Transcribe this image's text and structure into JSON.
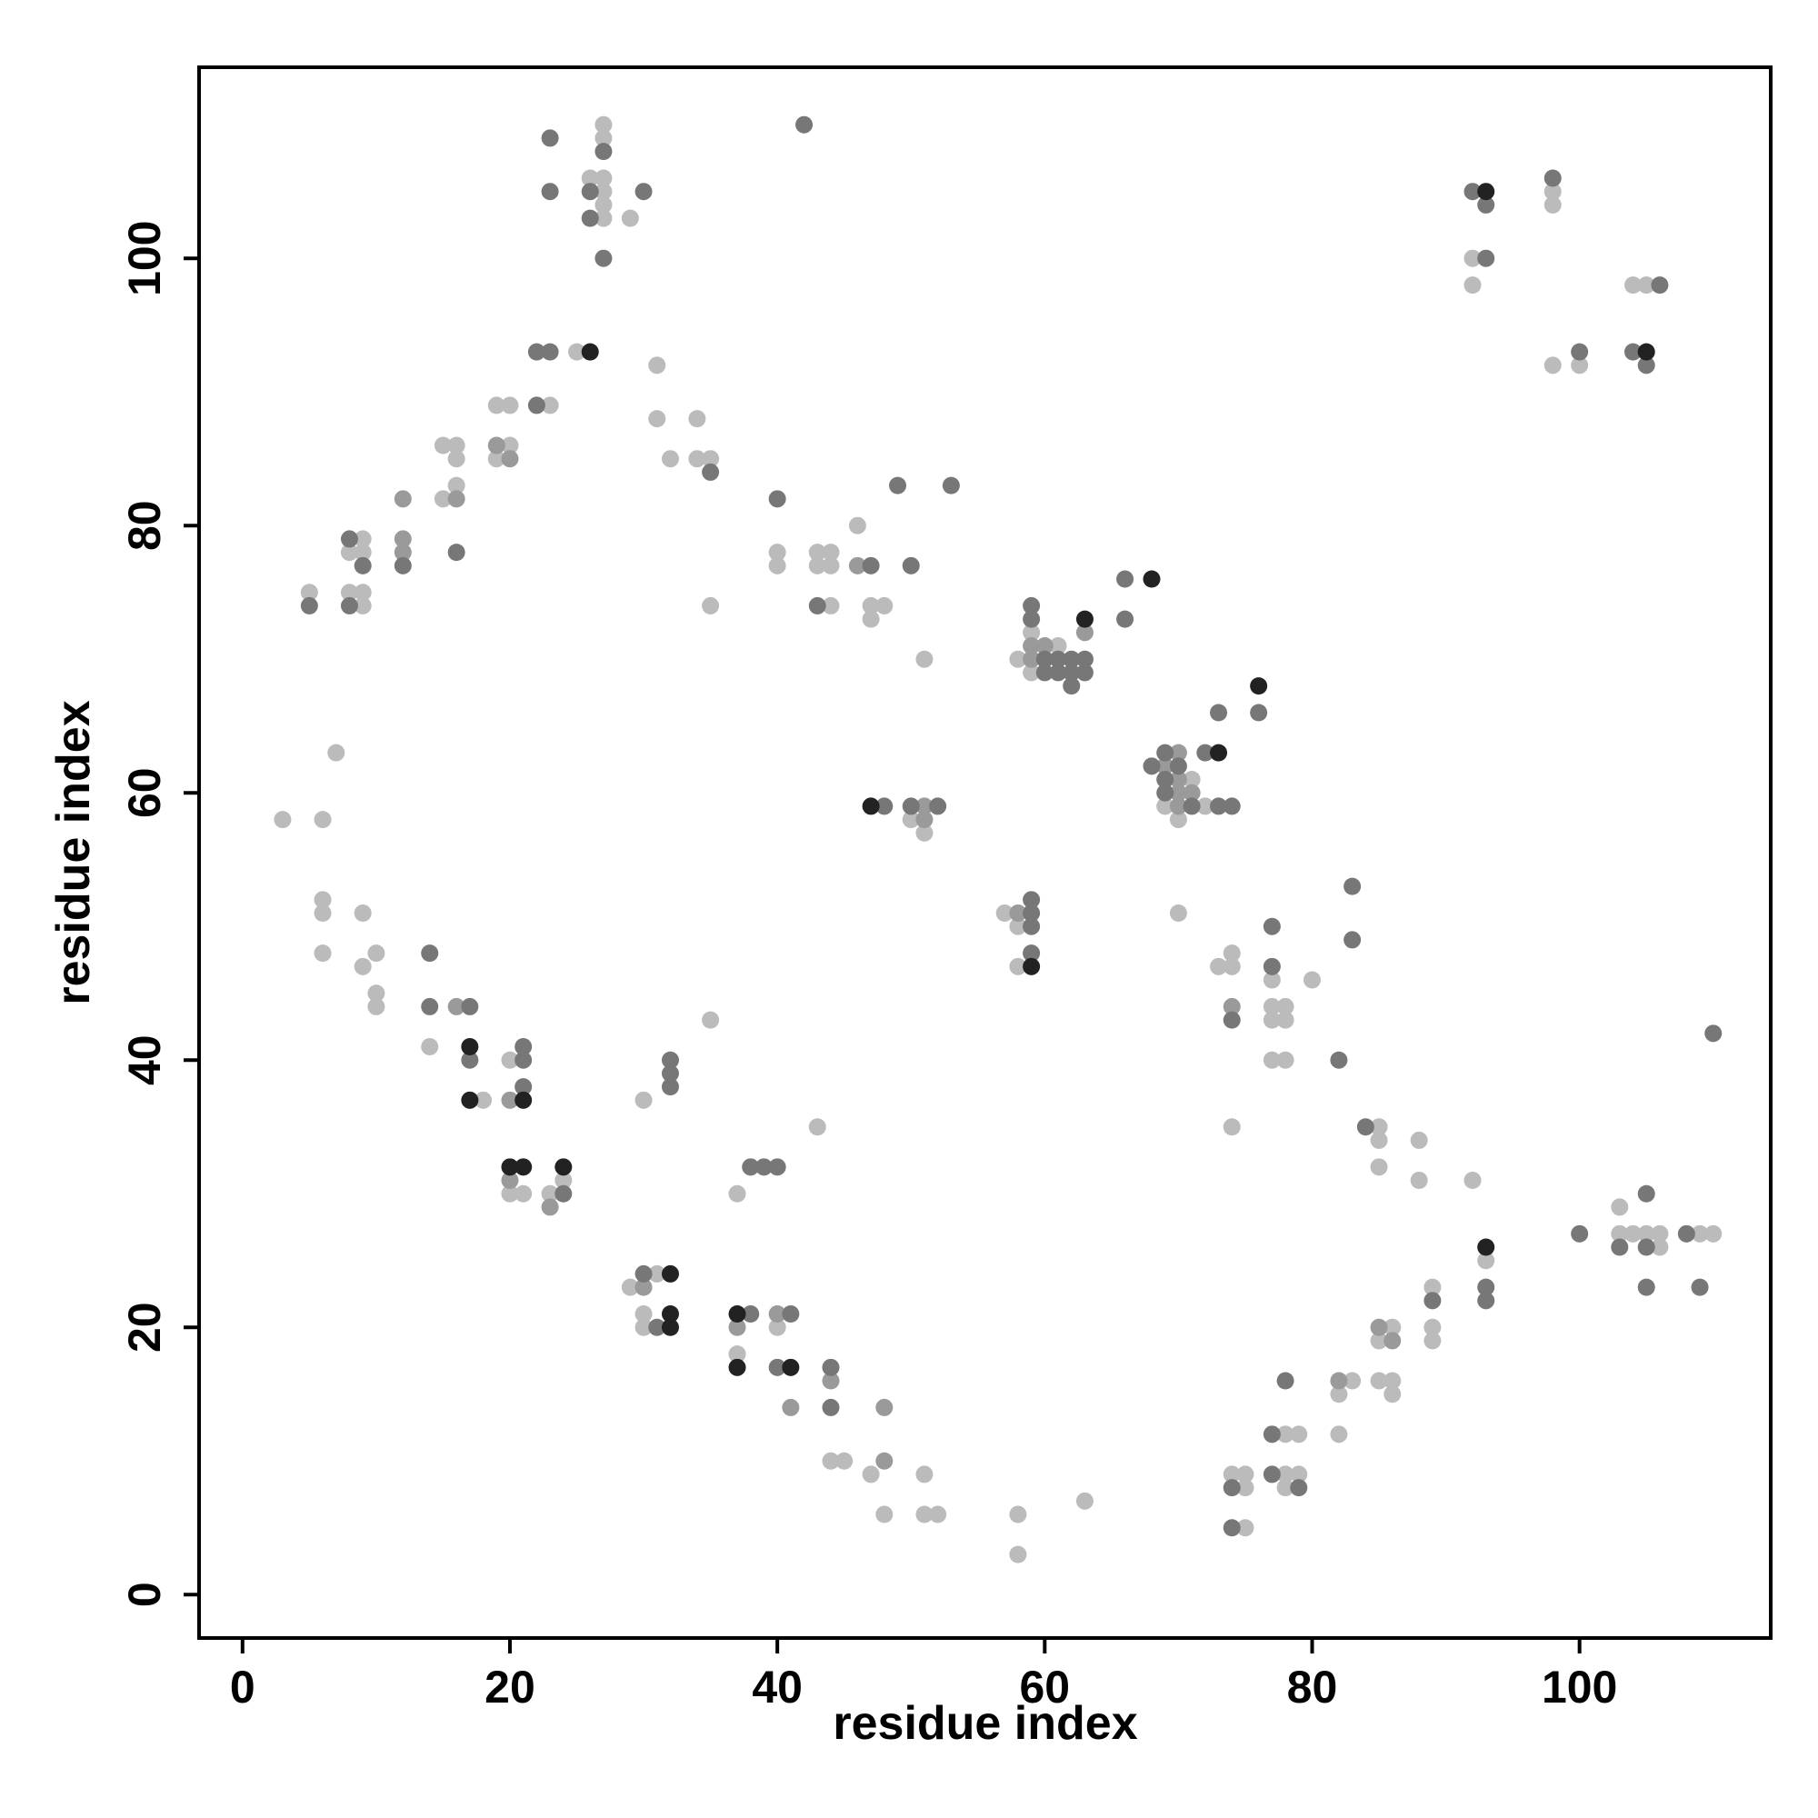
{
  "chart_data": {
    "type": "scatter",
    "x_label": "residue index",
    "y_label": "residue index",
    "xlim": [
      -3.25,
      114.3
    ],
    "ylim": [
      -3.25,
      114.3
    ],
    "xticks": [
      0,
      20,
      40,
      60,
      80,
      100
    ],
    "yticks": [
      0,
      20,
      40,
      60,
      80,
      100
    ],
    "grid": false,
    "series": [
      {
        "color": "#bbbbbb",
        "x": [
          27,
          27,
          26,
          27,
          27,
          27,
          27,
          29,
          25,
          23,
          31,
          19,
          20,
          20,
          19,
          15,
          16,
          16,
          16,
          15,
          9,
          8,
          9,
          8,
          9,
          9,
          5,
          31,
          34,
          32,
          34,
          35,
          35,
          40,
          40,
          43,
          44,
          43,
          44,
          44,
          46,
          47,
          48,
          47,
          51,
          58,
          59,
          61,
          59,
          71,
          69,
          72,
          70,
          50,
          51,
          3,
          6,
          7,
          57,
          58,
          58,
          70,
          77,
          80,
          73,
          74,
          74,
          77,
          78,
          77,
          78,
          77,
          78,
          74,
          6,
          6,
          6,
          9,
          10,
          9,
          10,
          10,
          14,
          18,
          20,
          20,
          21,
          23,
          24,
          30,
          35,
          43,
          37,
          29,
          31,
          30,
          30,
          37,
          40,
          44,
          45,
          47,
          48,
          51,
          51,
          52,
          58,
          58,
          63,
          74,
          75,
          75,
          75,
          78,
          79,
          78,
          79,
          78,
          83,
          82,
          82,
          86,
          85,
          85,
          86,
          86,
          85,
          85,
          85,
          88,
          88,
          92,
          89,
          89,
          89,
          93,
          103,
          103,
          104,
          105,
          106,
          106,
          109,
          110,
          92,
          92,
          98,
          98,
          98,
          100,
          104,
          105
        ],
        "y": [
          110,
          109,
          106,
          106,
          105,
          104,
          103,
          103,
          93,
          89,
          92,
          89,
          89,
          86,
          85,
          86,
          86,
          85,
          83,
          82,
          79,
          78,
          78,
          75,
          75,
          74,
          75,
          88,
          88,
          85,
          85,
          85,
          74,
          78,
          77,
          78,
          78,
          77,
          77,
          74,
          80,
          74,
          74,
          73,
          70,
          70,
          72,
          71,
          69,
          61,
          59,
          59,
          58,
          58,
          57,
          58,
          58,
          63,
          51,
          50,
          47,
          51,
          46,
          46,
          47,
          47,
          48,
          44,
          44,
          43,
          43,
          40,
          40,
          35,
          52,
          51,
          48,
          51,
          48,
          47,
          45,
          44,
          41,
          37,
          40,
          30,
          30,
          30,
          31,
          37,
          43,
          35,
          30,
          23,
          24,
          21,
          20,
          18,
          20,
          10,
          10,
          9,
          6,
          9,
          6,
          6,
          6,
          3,
          7,
          9,
          9,
          8,
          5,
          12,
          12,
          9,
          9,
          8,
          16,
          15,
          12,
          20,
          19,
          16,
          16,
          15,
          35,
          34,
          32,
          34,
          31,
          31,
          23,
          20,
          19,
          25,
          29,
          27,
          27,
          27,
          27,
          26,
          27,
          27,
          100,
          98,
          105,
          104,
          92,
          92,
          98,
          98
        ]
      },
      {
        "color": "#9a9a9a",
        "x": [
          19,
          20,
          16,
          12,
          12,
          12,
          46,
          59,
          60,
          59,
          63,
          69,
          70,
          70,
          70,
          71,
          70,
          51,
          51,
          58,
          74,
          16,
          20,
          20,
          23,
          30,
          37,
          40,
          44,
          41,
          48,
          48,
          82,
          85,
          86
        ],
        "y": [
          86,
          85,
          82,
          82,
          79,
          78,
          77,
          71,
          71,
          70,
          72,
          62,
          63,
          61,
          60,
          60,
          59,
          59,
          58,
          51,
          44,
          44,
          37,
          31,
          29,
          23,
          20,
          21,
          16,
          14,
          14,
          10,
          16,
          20,
          19
        ]
      },
      {
        "color": "#777777",
        "x": [
          23,
          23,
          26,
          26,
          27,
          27,
          30,
          42,
          22,
          23,
          22,
          16,
          12,
          8,
          9,
          8,
          5,
          35,
          40,
          43,
          47,
          49,
          53,
          50,
          59,
          59,
          60,
          61,
          62,
          63,
          60,
          61,
          62,
          63,
          62,
          66,
          66,
          73,
          76,
          68,
          69,
          70,
          69,
          69,
          71,
          72,
          73,
          74,
          48,
          50,
          52,
          59,
          59,
          59,
          59,
          77,
          77,
          74,
          83,
          83,
          82,
          14,
          14,
          17,
          17,
          21,
          21,
          21,
          24,
          32,
          32,
          32,
          38,
          39,
          40,
          30,
          31,
          38,
          41,
          40,
          44,
          44,
          74,
          74,
          77,
          78,
          77,
          79,
          84,
          89,
          93,
          93,
          100,
          103,
          105,
          105,
          105,
          108,
          109,
          110,
          92,
          93,
          93,
          98,
          100,
          106,
          104,
          105
        ],
        "y": [
          109,
          105,
          105,
          103,
          108,
          100,
          105,
          110,
          93,
          93,
          89,
          78,
          77,
          79,
          77,
          74,
          74,
          84,
          82,
          74,
          77,
          83,
          83,
          77,
          74,
          73,
          70,
          70,
          70,
          70,
          69,
          69,
          69,
          69,
          68,
          76,
          73,
          66,
          66,
          62,
          63,
          62,
          61,
          60,
          59,
          63,
          59,
          59,
          59,
          59,
          59,
          51,
          52,
          50,
          48,
          50,
          47,
          43,
          53,
          49,
          40,
          48,
          44,
          44,
          40,
          41,
          40,
          38,
          30,
          40,
          39,
          38,
          32,
          32,
          32,
          24,
          20,
          21,
          21,
          17,
          17,
          14,
          8,
          5,
          12,
          16,
          9,
          8,
          35,
          22,
          23,
          22,
          27,
          26,
          26,
          30,
          23,
          27,
          23,
          42,
          105,
          104,
          100,
          106,
          93,
          98,
          93,
          92
        ]
      },
      {
        "color": "#222222",
        "x": [
          26,
          63,
          68,
          76,
          73,
          47,
          59,
          17,
          17,
          21,
          20,
          21,
          24,
          32,
          32,
          32,
          37,
          37,
          41,
          93,
          93,
          105
        ],
        "y": [
          93,
          73,
          76,
          68,
          63,
          59,
          47,
          41,
          37,
          37,
          32,
          32,
          32,
          24,
          21,
          20,
          21,
          17,
          17,
          26,
          105,
          93
        ]
      }
    ]
  }
}
